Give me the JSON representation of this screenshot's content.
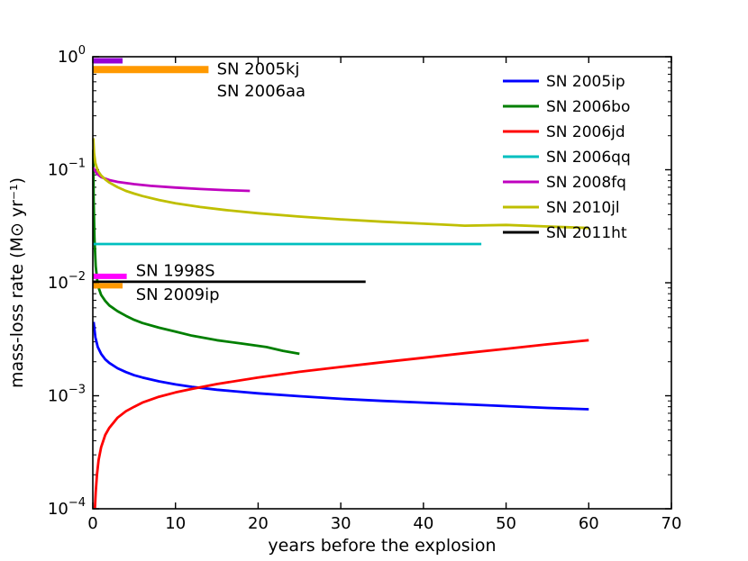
{
  "chart_data": {
    "type": "line",
    "title": "",
    "xlabel": "years before the explosion",
    "ylabel": "mass-loss rate (M⊙ yr⁻¹)",
    "xlim": [
      0,
      70
    ],
    "xticks": [
      0,
      10,
      20,
      30,
      40,
      50,
      60,
      70
    ],
    "yscale": "log",
    "ylim_exp": [
      -4,
      0
    ],
    "ytick_exponents": [
      0,
      -1,
      -2,
      -3,
      -4
    ],
    "grid": false,
    "legend_position": "upper right",
    "series": [
      {
        "name": "SN 2005ip",
        "color": "#0000ff",
        "points": [
          [
            0.1,
            0.0045
          ],
          [
            0.3,
            0.0033
          ],
          [
            0.6,
            0.0027
          ],
          [
            1,
            0.00235
          ],
          [
            1.5,
            0.0021
          ],
          [
            2,
            0.00195
          ],
          [
            3,
            0.00175
          ],
          [
            4,
            0.00162
          ],
          [
            5,
            0.00152
          ],
          [
            6,
            0.00145
          ],
          [
            8,
            0.00134
          ],
          [
            10,
            0.00126
          ],
          [
            12,
            0.0012
          ],
          [
            15,
            0.00113
          ],
          [
            20,
            0.00105
          ],
          [
            25,
            0.00099
          ],
          [
            30,
            0.00094
          ],
          [
            35,
            0.0009
          ],
          [
            40,
            0.00087
          ],
          [
            45,
            0.00084
          ],
          [
            50,
            0.00081
          ],
          [
            55,
            0.00078
          ],
          [
            60,
            0.00076
          ]
        ]
      },
      {
        "name": "SN 2006bo",
        "color": "#007f00",
        "points": [
          [
            0.05,
            0.15
          ],
          [
            0.1,
            0.055
          ],
          [
            0.2,
            0.025
          ],
          [
            0.35,
            0.014
          ],
          [
            0.6,
            0.0095
          ],
          [
            1,
            0.0078
          ],
          [
            1.5,
            0.0069
          ],
          [
            2,
            0.0063
          ],
          [
            3,
            0.0056
          ],
          [
            4,
            0.0051
          ],
          [
            5,
            0.0047
          ],
          [
            6,
            0.0044
          ],
          [
            8,
            0.004
          ],
          [
            10,
            0.0037
          ],
          [
            12,
            0.0034
          ],
          [
            15,
            0.0031
          ],
          [
            18,
            0.0029
          ],
          [
            21,
            0.0027
          ],
          [
            23,
            0.0025
          ],
          [
            25,
            0.00235
          ]
        ]
      },
      {
        "name": "SN 2006jd",
        "color": "#ff0000",
        "points": [
          [
            0.25,
            0.0001
          ],
          [
            0.35,
            0.00014
          ],
          [
            0.5,
            0.0002
          ],
          [
            0.7,
            0.00027
          ],
          [
            1,
            0.00035
          ],
          [
            1.5,
            0.00045
          ],
          [
            2,
            0.00052
          ],
          [
            3,
            0.00064
          ],
          [
            4,
            0.00073
          ],
          [
            5,
            0.0008
          ],
          [
            6,
            0.00087
          ],
          [
            8,
            0.00098
          ],
          [
            10,
            0.00107
          ],
          [
            12,
            0.00115
          ],
          [
            15,
            0.00127
          ],
          [
            20,
            0.00145
          ],
          [
            25,
            0.00163
          ],
          [
            30,
            0.0018
          ],
          [
            35,
            0.00198
          ],
          [
            40,
            0.00217
          ],
          [
            45,
            0.00238
          ],
          [
            50,
            0.0026
          ],
          [
            55,
            0.00285
          ],
          [
            60,
            0.0031
          ]
        ]
      },
      {
        "name": "SN 2006qq",
        "color": "#00bfbf",
        "points": [
          [
            0,
            0.022
          ],
          [
            47,
            0.022
          ]
        ]
      },
      {
        "name": "SN 2008fq",
        "color": "#bf00bf",
        "points": [
          [
            0,
            0.105
          ],
          [
            0.5,
            0.092
          ],
          [
            1,
            0.086
          ],
          [
            2,
            0.081
          ],
          [
            3,
            0.078
          ],
          [
            5,
            0.0745
          ],
          [
            7,
            0.072
          ],
          [
            10,
            0.0695
          ],
          [
            13,
            0.0675
          ],
          [
            16,
            0.066
          ],
          [
            19,
            0.065
          ]
        ]
      },
      {
        "name": "SN 2010jl",
        "color": "#bfbf00",
        "points": [
          [
            0.05,
            0.19
          ],
          [
            0.15,
            0.14
          ],
          [
            0.3,
            0.115
          ],
          [
            0.6,
            0.098
          ],
          [
            1,
            0.089
          ],
          [
            1.5,
            0.082
          ],
          [
            2,
            0.077
          ],
          [
            3,
            0.07
          ],
          [
            4,
            0.065
          ],
          [
            5,
            0.0615
          ],
          [
            6,
            0.0585
          ],
          [
            8,
            0.054
          ],
          [
            10,
            0.0505
          ],
          [
            13,
            0.0468
          ],
          [
            16,
            0.044
          ],
          [
            20,
            0.0412
          ],
          [
            25,
            0.0385
          ],
          [
            30,
            0.0364
          ],
          [
            35,
            0.0347
          ],
          [
            40,
            0.0333
          ],
          [
            45,
            0.032
          ],
          [
            50,
            0.0325
          ],
          [
            55,
            0.0315
          ],
          [
            60,
            0.0305
          ]
        ]
      },
      {
        "name": "SN 2011ht",
        "color": "#000000",
        "points": [
          [
            0,
            0.0102
          ],
          [
            33,
            0.0102
          ]
        ]
      }
    ],
    "bars": [
      {
        "name": "SN 2005kj",
        "color": "#9400d3",
        "x": [
          0,
          3.6
        ],
        "y": 0.92,
        "width": 6
      },
      {
        "name": "SN 2006aa",
        "color": "#ff9900",
        "x": [
          0,
          14
        ],
        "y": 0.77,
        "width": 8
      },
      {
        "name": "SN 1998S",
        "color": "#ff00ff",
        "x": [
          0,
          4.1
        ],
        "y": 0.0114,
        "width": 6
      },
      {
        "name": "SN 2009ip",
        "color": "#ff9900",
        "x": [
          0,
          3.6
        ],
        "y": 0.0094,
        "width": 6
      }
    ],
    "annotations": [
      {
        "label": "SN 2005kj",
        "color": "#9400d3",
        "x": 15,
        "y": 0.78
      },
      {
        "label": "SN 2006aa",
        "color": "#ff9900",
        "x": 15,
        "y": 0.5
      },
      {
        "label": "SN 1998S",
        "color": "#ff00ff",
        "x": 5.2,
        "y": 0.0128
      },
      {
        "label": "SN 2009ip",
        "color": "#ff9900",
        "x": 5.2,
        "y": 0.0079
      }
    ]
  }
}
